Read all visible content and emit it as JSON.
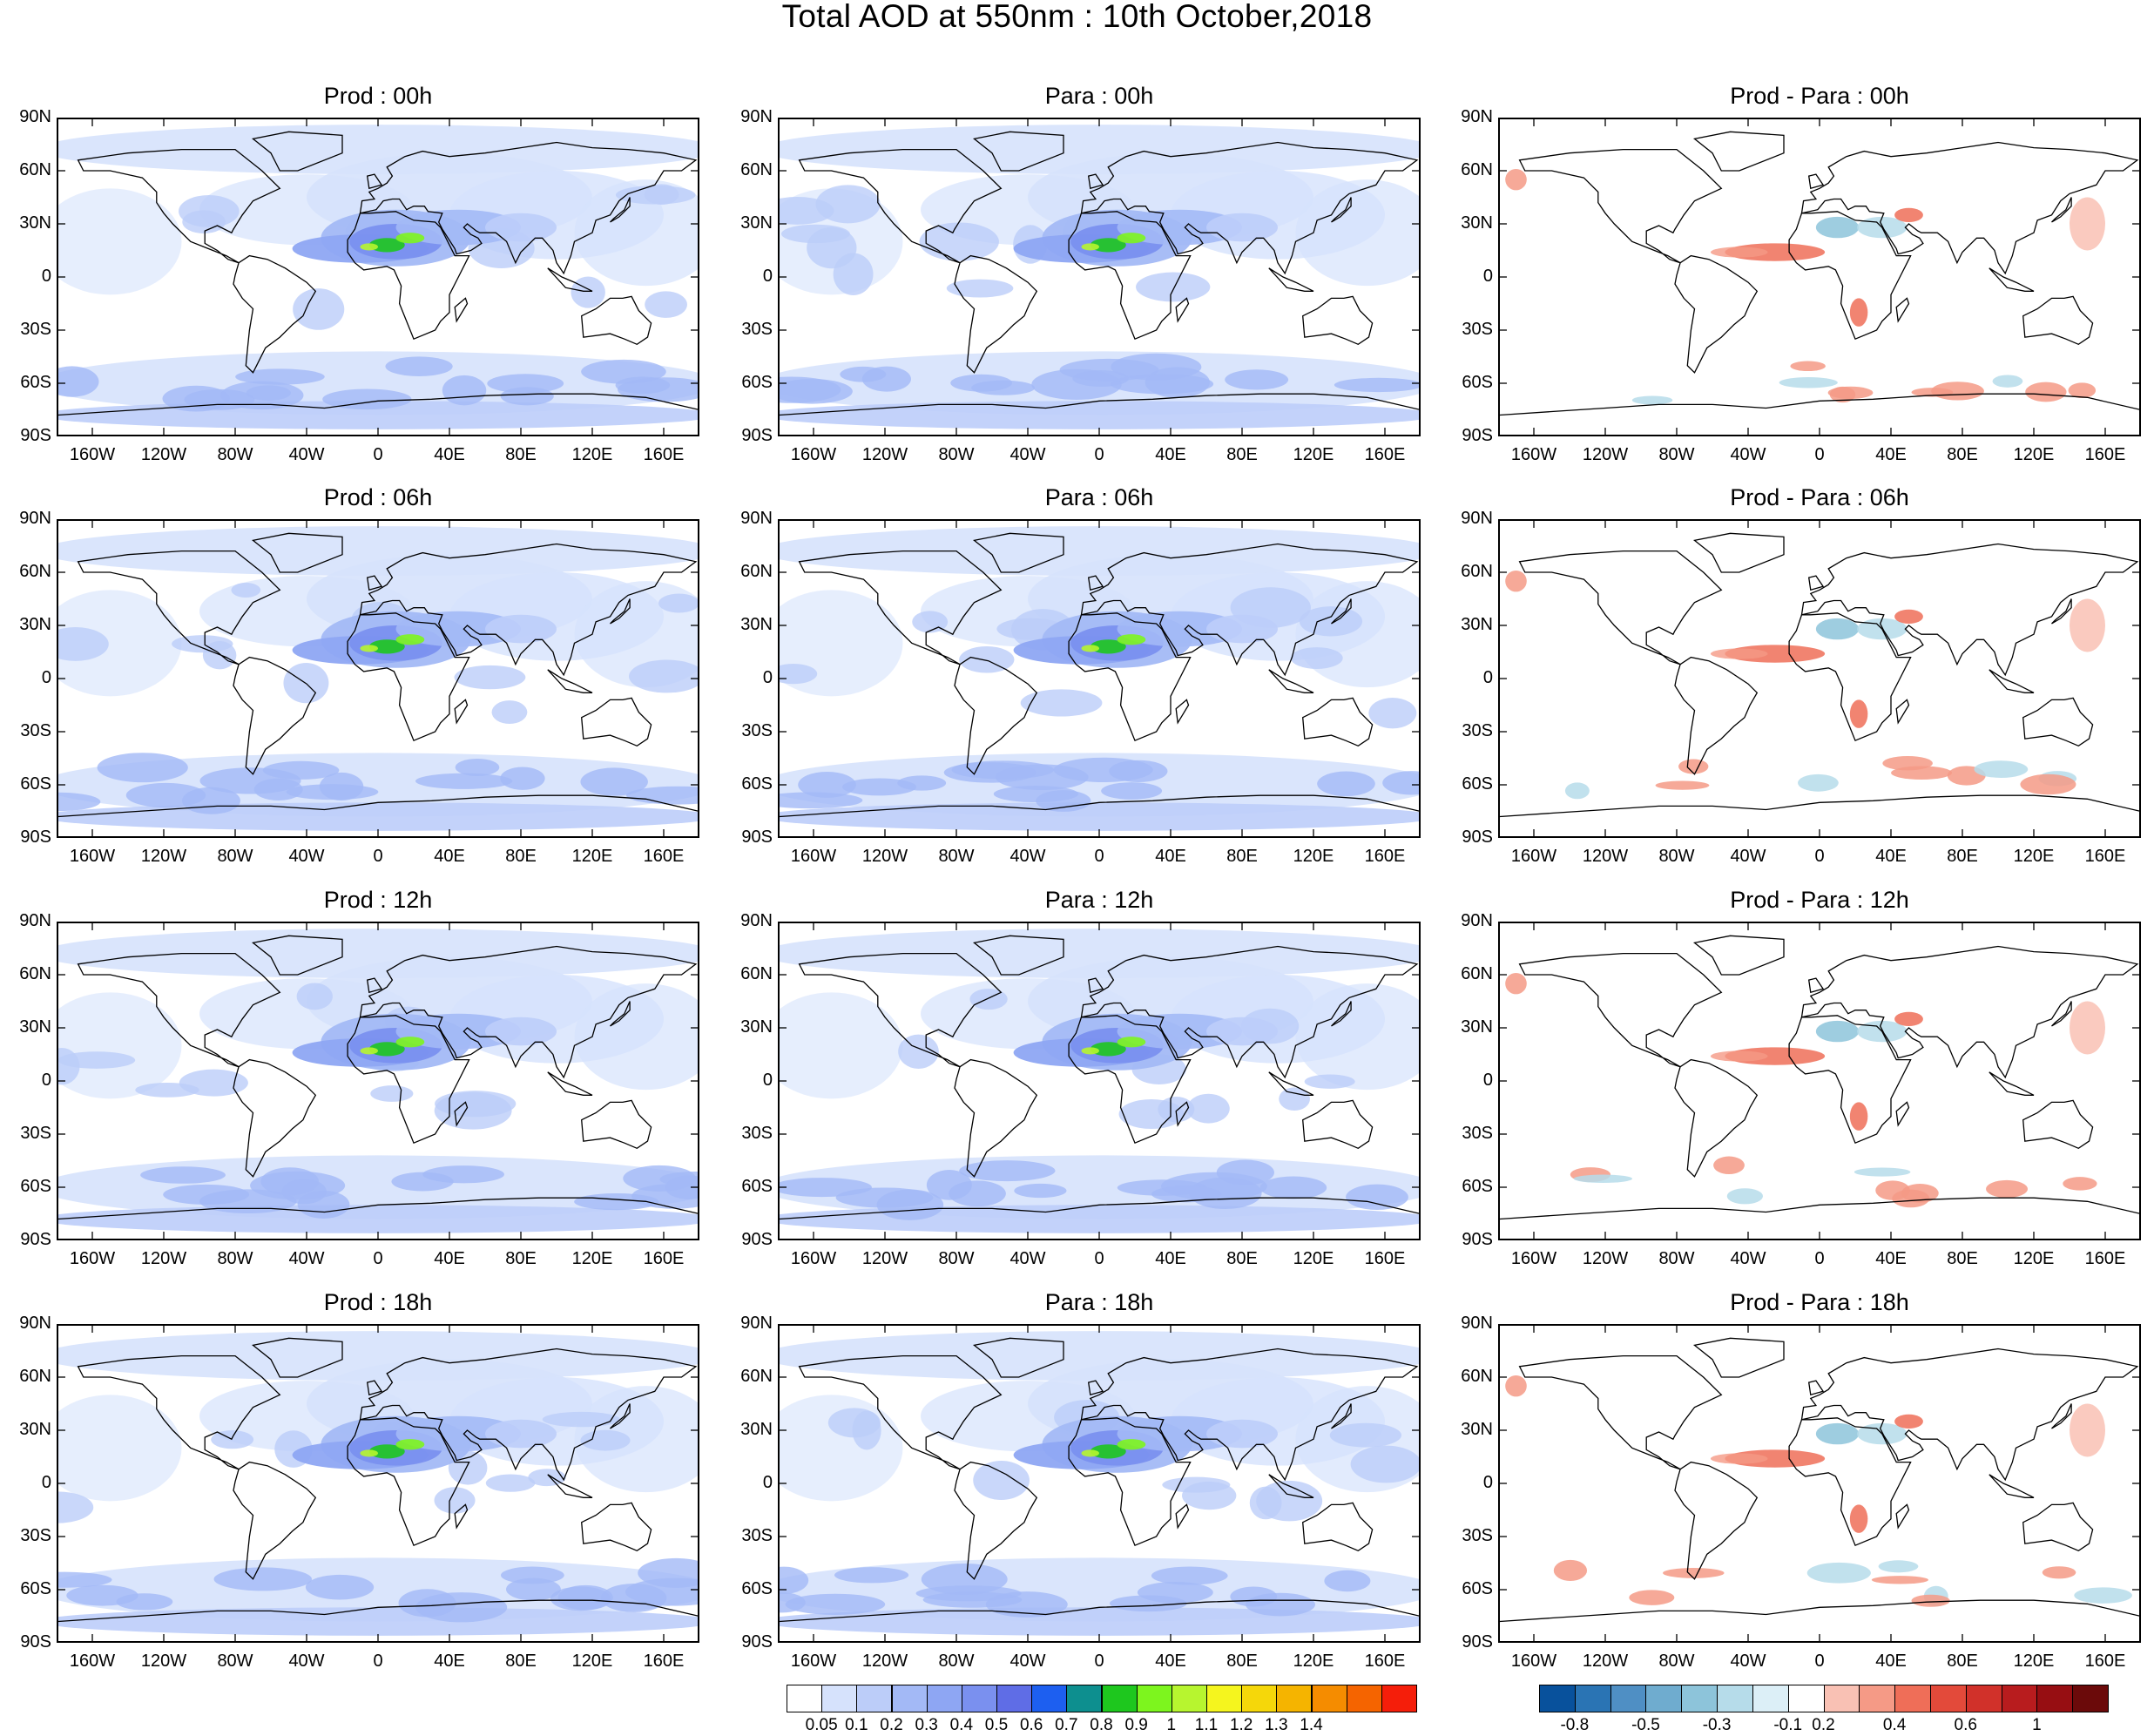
{
  "title": "Total AOD at 550nm : 10th October,2018",
  "panels": [
    {
      "title": "Prod : 00h",
      "kind": "prod"
    },
    {
      "title": "Para : 00h",
      "kind": "para"
    },
    {
      "title": "Prod - Para : 00h",
      "kind": "diff"
    },
    {
      "title": "Prod : 06h",
      "kind": "prod"
    },
    {
      "title": "Para : 06h",
      "kind": "para"
    },
    {
      "title": "Prod - Para : 06h",
      "kind": "diff"
    },
    {
      "title": "Prod : 12h",
      "kind": "prod"
    },
    {
      "title": "Para : 12h",
      "kind": "para"
    },
    {
      "title": "Prod - Para : 12h",
      "kind": "diff"
    },
    {
      "title": "Prod : 18h",
      "kind": "prod"
    },
    {
      "title": "Para : 18h",
      "kind": "para"
    },
    {
      "title": "Prod - Para : 18h",
      "kind": "diff"
    }
  ],
  "lat_labels": [
    "90N",
    "60N",
    "30N",
    "0",
    "30S",
    "60S",
    "90S"
  ],
  "lon_labels": [
    "160W",
    "120W",
    "80W",
    "40W",
    "0",
    "40E",
    "80E",
    "120E",
    "160E"
  ],
  "aod_colorbar": {
    "colors": [
      "#ffffff",
      "#d6e2fc",
      "#bccdf9",
      "#a3b9f6",
      "#8ea6f3",
      "#7a90ef",
      "#5f6de6",
      "#1d5ff0",
      "#0d8f8f",
      "#1ec71e",
      "#7df51e",
      "#b7f52f",
      "#f5f51e",
      "#f5d70a",
      "#f5b400",
      "#f58c00",
      "#f56400",
      "#f51e0a"
    ],
    "labels": [
      "0.05",
      "0.1",
      "0.2",
      "0.3",
      "0.4",
      "0.5",
      "0.6",
      "0.7",
      "0.8",
      "0.9",
      "1",
      "1.1",
      "1.2",
      "1.3",
      "1.4"
    ]
  },
  "diff_colorbar": {
    "colors": [
      "#08519c",
      "#2a74b4",
      "#4f8fc4",
      "#6faccf",
      "#8dc4da",
      "#b6dcea",
      "#dceff7",
      "#ffffff",
      "#f9c1b4",
      "#f59a86",
      "#ef6e58",
      "#e34a3a",
      "#d1312a",
      "#b81c1e",
      "#970e12",
      "#6b0a0a"
    ],
    "labels": [
      "-0.8",
      "-0.5",
      "-0.3",
      "-0.1",
      "0.2",
      "0.4",
      "0.6",
      "1"
    ]
  }
}
